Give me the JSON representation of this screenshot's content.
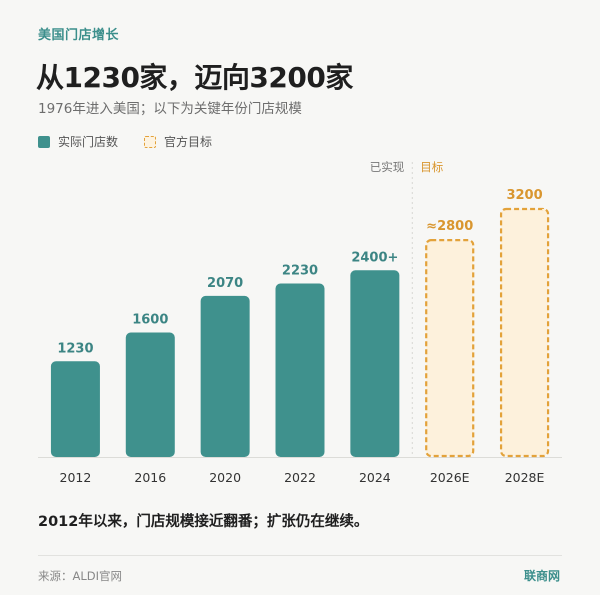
{
  "header": {
    "kicker": "美国门店增长",
    "title": "从1230家，迈向3200家",
    "subtitle": "1976年进入美国；以下为关键年份门店规模"
  },
  "legend": {
    "actual_label": "实际门店数",
    "target_label": "官方目标"
  },
  "section_labels": {
    "achieved": "已实现",
    "target": "目标"
  },
  "chart_data": {
    "type": "bar",
    "categories": [
      "2012",
      "2016",
      "2020",
      "2022",
      "2024",
      "2026E",
      "2028E"
    ],
    "values": [
      1230,
      1600,
      2070,
      2230,
      2400,
      2800,
      3200
    ],
    "value_labels": [
      "1230",
      "1600",
      "2070",
      "2230",
      "2400+",
      "≈2800",
      "3200"
    ],
    "status": [
      "actual",
      "actual",
      "actual",
      "actual",
      "actual",
      "target",
      "target"
    ],
    "ylim": [
      0,
      3200
    ],
    "colors": {
      "actual": "#3f918d",
      "target_fill": "#fdf1dc",
      "target_stroke": "#e3a23a",
      "actual_label": "#3c8584",
      "target_label": "#d9962f"
    }
  },
  "footer": {
    "takeaway": "2012年以来，门店规模接近翻番；扩张仍在继续。",
    "source": "来源：ALDI官网",
    "brand": "联商网"
  }
}
